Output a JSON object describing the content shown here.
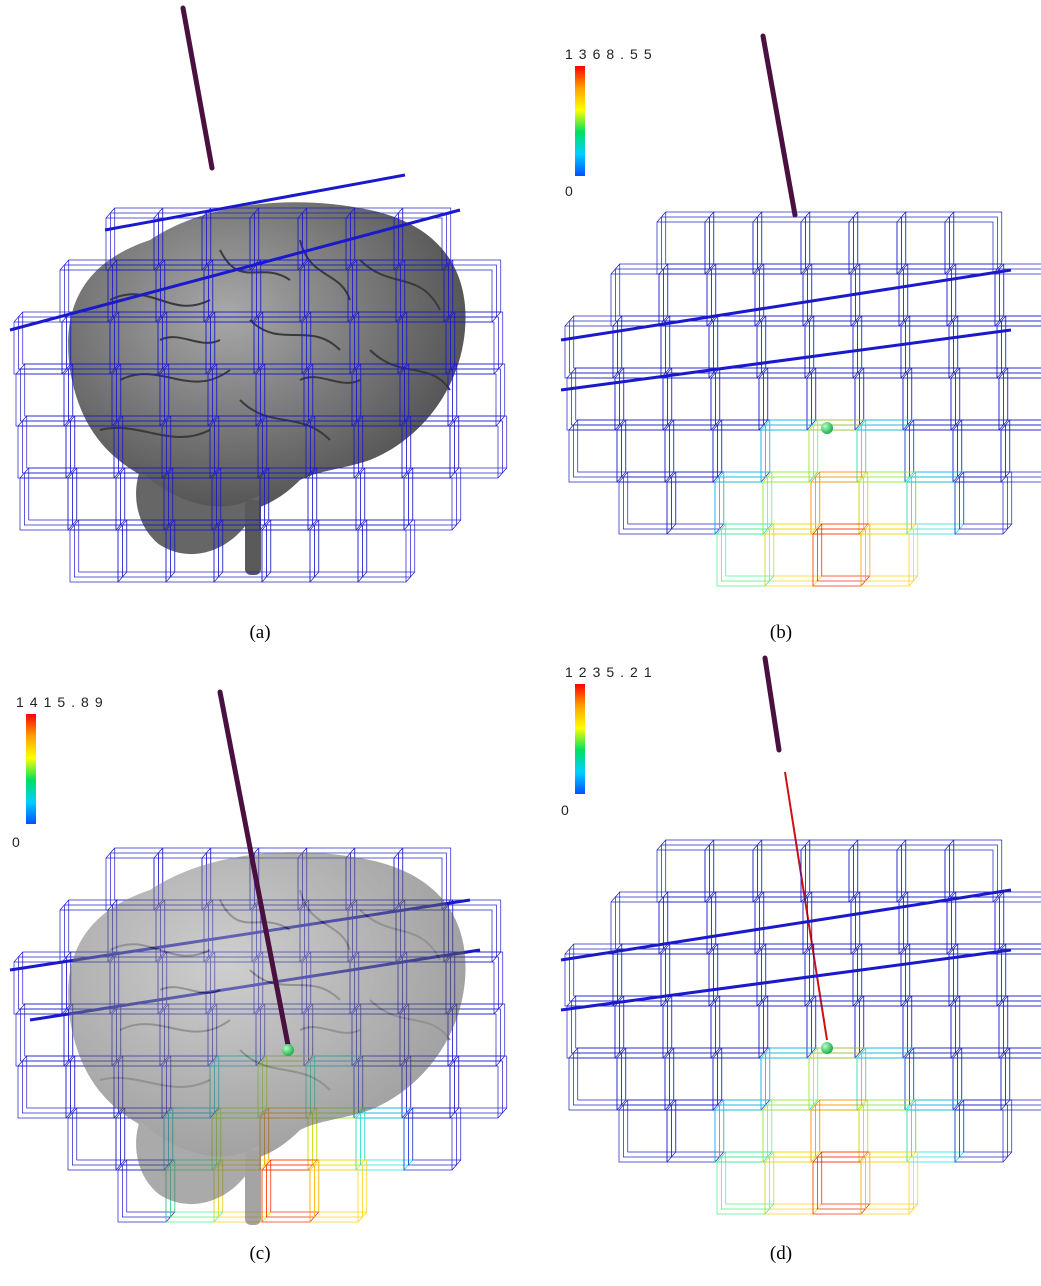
{
  "panels": [
    {
      "id": "a",
      "caption": "(a)",
      "brain": "opaque",
      "colorbar": null
    },
    {
      "id": "b",
      "caption": "(b)",
      "brain": "none",
      "colorbar": {
        "max": "1368.55",
        "min": "0"
      }
    },
    {
      "id": "c",
      "caption": "(c)",
      "brain": "transparent",
      "colorbar": {
        "max": "1415.89",
        "min": "0"
      }
    },
    {
      "id": "d",
      "caption": "(d)",
      "brain": "none",
      "colorbar": {
        "max": "1235.21",
        "min": "0"
      }
    }
  ],
  "colors": {
    "grid": "#1a1acc",
    "needle": "#4a1040",
    "marker": "#20b050",
    "brain": "#7a7a7a"
  }
}
